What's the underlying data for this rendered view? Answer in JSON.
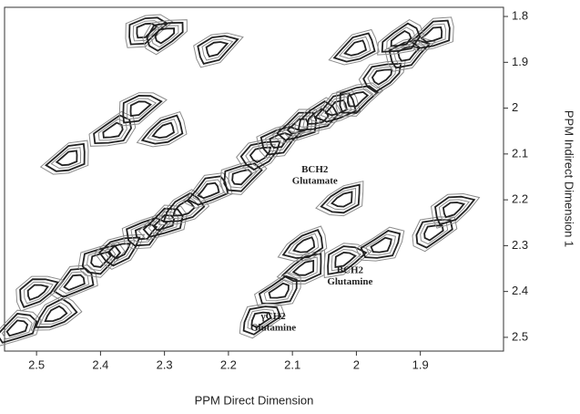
{
  "chart_data": {
    "type": "contour",
    "xlabel": "PPM Direct Dimension",
    "ylabel": "PPM Indirect Dimension 1",
    "xlim": [
      2.55,
      1.77
    ],
    "xticks": [
      2.5,
      2.4,
      2.3,
      2.2,
      2.1,
      2.0,
      1.9
    ],
    "ylim": [
      1.78,
      2.53
    ],
    "yticks": [
      1.8,
      1.9,
      2.0,
      2.1,
      2.2,
      2.3,
      2.4,
      2.5
    ],
    "color": "#222222",
    "color2": "#8a8a8a",
    "peaks": {
      "x": [
        2.53,
        2.47,
        2.44,
        2.4,
        2.37,
        2.33,
        2.3,
        2.27,
        2.23,
        2.18,
        2.15,
        2.12,
        2.09,
        2.06,
        2.03,
        2.0,
        1.96,
        1.92,
        1.88,
        1.93,
        2.0,
        2.33,
        2.3,
        2.22,
        2.45,
        2.38,
        2.3,
        2.34,
        1.88,
        1.85,
        2.08,
        2.12,
        2.08,
        2.02,
        2.15,
        2.5,
        2.02,
        1.96
      ],
      "y": [
        2.48,
        2.45,
        2.38,
        2.33,
        2.31,
        2.27,
        2.25,
        2.22,
        2.18,
        2.15,
        2.1,
        2.07,
        2.04,
        2.02,
        2.0,
        1.98,
        1.93,
        1.88,
        1.84,
        1.85,
        1.87,
        1.83,
        1.84,
        1.87,
        2.11,
        2.05,
        2.05,
        2.0,
        2.27,
        2.22,
        2.35,
        2.4,
        2.3,
        2.33,
        2.46,
        2.4,
        2.2,
        2.3
      ]
    },
    "annotations": [
      {
        "text": "BCH2",
        "x": 2.065,
        "y": 2.135
      },
      {
        "text": "Glutamate",
        "x": 2.065,
        "y": 2.16
      },
      {
        "text": "BCH2",
        "x": 2.01,
        "y": 2.355
      },
      {
        "text": "Glutamine",
        "x": 2.01,
        "y": 2.38
      },
      {
        "text": "γCH2",
        "x": 2.13,
        "y": 2.455
      },
      {
        "text": "Glutamine",
        "x": 2.13,
        "y": 2.48
      }
    ]
  }
}
